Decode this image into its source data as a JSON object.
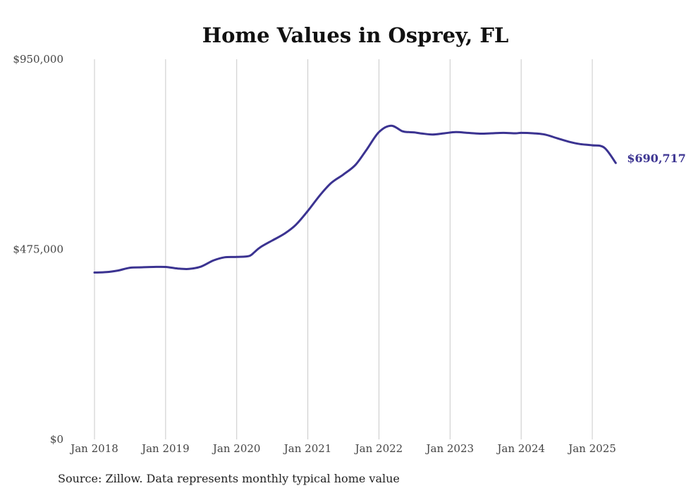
{
  "chart_data": {
    "type": "line",
    "title": "Home Values in Osprey, FL",
    "xlabel": "",
    "ylabel": "",
    "ylim": [
      0,
      950000
    ],
    "y_ticks": [
      "$0",
      "$475,000",
      "$950,000"
    ],
    "y_tick_values": [
      0,
      475000,
      950000
    ],
    "x_ticks": [
      "Jan 2018",
      "Jan 2019",
      "Jan 2020",
      "Jan 2021",
      "Jan 2022",
      "Jan 2023",
      "Jan 2024",
      "Jan 2025"
    ],
    "x_tick_values": [
      2018,
      2019,
      2020,
      2021,
      2022,
      2023,
      2024,
      2025
    ],
    "xlim": [
      2018,
      2025.4
    ],
    "grid": "vertical",
    "series": [
      {
        "color": "#3b3391",
        "x": [
          2018.0,
          2018.17,
          2018.33,
          2018.5,
          2018.67,
          2018.83,
          2019.0,
          2019.17,
          2019.33,
          2019.5,
          2019.67,
          2019.83,
          2020.0,
          2020.17,
          2020.25,
          2020.33,
          2020.5,
          2020.67,
          2020.83,
          2021.0,
          2021.17,
          2021.33,
          2021.5,
          2021.67,
          2021.83,
          2022.0,
          2022.17,
          2022.33,
          2022.42,
          2022.5,
          2022.58,
          2022.75,
          2022.92,
          2023.08,
          2023.25,
          2023.42,
          2023.58,
          2023.75,
          2023.92,
          2024.0,
          2024.17,
          2024.33,
          2024.5,
          2024.67,
          2024.83,
          2025.0,
          2025.17,
          2025.33
        ],
        "y": [
          417000,
          418000,
          422000,
          429000,
          430000,
          431000,
          431000,
          427000,
          426000,
          432000,
          447000,
          455000,
          456000,
          458000,
          468000,
          480000,
          497000,
          514000,
          536000,
          571000,
          610000,
          641000,
          662000,
          686000,
          725000,
          768000,
          784000,
          770000,
          768000,
          767000,
          765000,
          762000,
          765000,
          768000,
          766000,
          764000,
          765000,
          766000,
          765000,
          766000,
          765000,
          762000,
          753000,
          744000,
          738000,
          735000,
          729000,
          690717
        ],
        "end_label": "$690,717"
      }
    ],
    "source": "Source: Zillow. Data represents monthly typical home value"
  }
}
